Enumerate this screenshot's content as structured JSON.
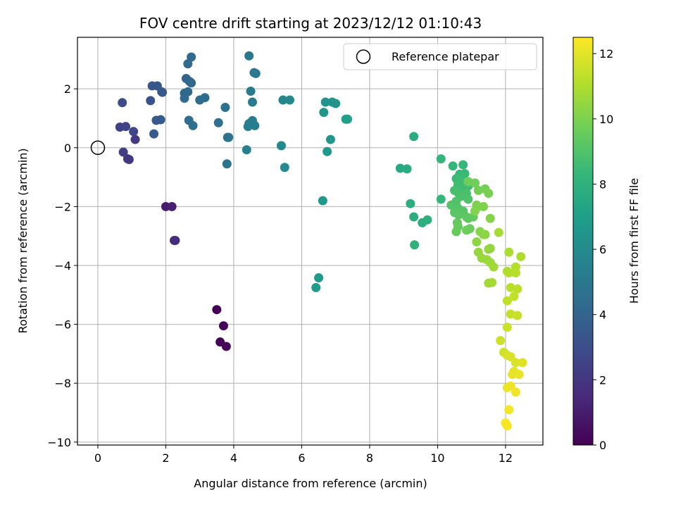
{
  "chart_data": {
    "type": "scatter",
    "title": "FOV centre drift starting at 2023/12/12 01:10:43",
    "xlabel": "Angular distance from reference (arcmin)",
    "ylabel": "Rotation from reference (arcmin)",
    "xlim": [
      -0.6,
      13.1
    ],
    "ylim": [
      -10.1,
      3.75
    ],
    "xticks": [
      0,
      2,
      4,
      6,
      8,
      10,
      12
    ],
    "yticks": [
      -10,
      -8,
      -6,
      -4,
      -2,
      0,
      2
    ],
    "grid": true,
    "legend": {
      "placement": "top-right",
      "entries": [
        {
          "label": "Reference platepar",
          "marker": "open-circle"
        }
      ]
    },
    "reference_point": {
      "x": 0,
      "y": 0
    },
    "colorbar": {
      "label": "Hours from first FF file",
      "colormap": "viridis",
      "range": [
        0,
        12.5
      ],
      "ticks": [
        0,
        2,
        4,
        6,
        8,
        10,
        12
      ]
    },
    "points": [
      {
        "x": 3.5,
        "y": -5.5,
        "t": 0.05
      },
      {
        "x": 3.7,
        "y": -6.05,
        "t": 0.1
      },
      {
        "x": 3.6,
        "y": -6.6,
        "t": 0.15
      },
      {
        "x": 3.78,
        "y": -6.75,
        "t": 0.2
      },
      {
        "x": 2.0,
        "y": -2.0,
        "t": 1.0
      },
      {
        "x": 2.18,
        "y": -2.0,
        "t": 1.1
      },
      {
        "x": 2.25,
        "y": -3.15,
        "t": 1.5
      },
      {
        "x": 2.28,
        "y": -3.15,
        "t": 1.6
      },
      {
        "x": 0.88,
        "y": -0.38,
        "t": 2.0
      },
      {
        "x": 0.92,
        "y": -0.4,
        "t": 2.1
      },
      {
        "x": 1.1,
        "y": 0.28,
        "t": 2.2
      },
      {
        "x": 0.75,
        "y": -0.15,
        "t": 2.3
      },
      {
        "x": 0.65,
        "y": 0.7,
        "t": 2.5
      },
      {
        "x": 0.82,
        "y": 0.72,
        "t": 2.6
      },
      {
        "x": 1.05,
        "y": 0.55,
        "t": 2.7
      },
      {
        "x": 0.72,
        "y": 1.53,
        "t": 2.9
      },
      {
        "x": 1.55,
        "y": 1.6,
        "t": 3.2
      },
      {
        "x": 1.6,
        "y": 2.1,
        "t": 3.3
      },
      {
        "x": 1.75,
        "y": 2.1,
        "t": 3.35
      },
      {
        "x": 1.88,
        "y": 1.9,
        "t": 3.4
      },
      {
        "x": 1.9,
        "y": 1.88,
        "t": 3.45
      },
      {
        "x": 1.72,
        "y": 0.93,
        "t": 3.5
      },
      {
        "x": 1.85,
        "y": 0.95,
        "t": 3.55
      },
      {
        "x": 1.65,
        "y": 0.47,
        "t": 3.6
      },
      {
        "x": 2.6,
        "y": 2.35,
        "t": 4.0
      },
      {
        "x": 2.7,
        "y": 2.25,
        "t": 4.05
      },
      {
        "x": 2.75,
        "y": 2.2,
        "t": 4.1
      },
      {
        "x": 2.55,
        "y": 1.85,
        "t": 4.15
      },
      {
        "x": 2.65,
        "y": 1.9,
        "t": 4.2
      },
      {
        "x": 2.55,
        "y": 1.68,
        "t": 4.25
      },
      {
        "x": 2.65,
        "y": 2.85,
        "t": 4.3
      },
      {
        "x": 2.75,
        "y": 3.08,
        "t": 4.35
      },
      {
        "x": 3.0,
        "y": 1.62,
        "t": 4.4
      },
      {
        "x": 3.15,
        "y": 1.7,
        "t": 4.45
      },
      {
        "x": 2.68,
        "y": 0.93,
        "t": 4.5
      },
      {
        "x": 2.8,
        "y": 0.75,
        "t": 4.55
      },
      {
        "x": 3.55,
        "y": 0.85,
        "t": 4.6
      },
      {
        "x": 3.75,
        "y": 1.37,
        "t": 4.65
      },
      {
        "x": 3.82,
        "y": 0.35,
        "t": 4.7
      },
      {
        "x": 3.85,
        "y": 0.35,
        "t": 4.75
      },
      {
        "x": 3.8,
        "y": -0.55,
        "t": 4.8
      },
      {
        "x": 4.45,
        "y": 3.12,
        "t": 5.0
      },
      {
        "x": 4.6,
        "y": 2.55,
        "t": 5.05
      },
      {
        "x": 4.65,
        "y": 2.52,
        "t": 5.1
      },
      {
        "x": 4.5,
        "y": 1.92,
        "t": 5.15
      },
      {
        "x": 4.55,
        "y": 1.55,
        "t": 5.2
      },
      {
        "x": 4.55,
        "y": 0.92,
        "t": 5.25
      },
      {
        "x": 4.45,
        "y": 0.82,
        "t": 5.3
      },
      {
        "x": 4.42,
        "y": 0.72,
        "t": 5.35
      },
      {
        "x": 4.62,
        "y": 0.75,
        "t": 5.4
      },
      {
        "x": 4.38,
        "y": -0.07,
        "t": 5.45
      },
      {
        "x": 5.45,
        "y": 1.62,
        "t": 5.8
      },
      {
        "x": 5.65,
        "y": 1.62,
        "t": 5.85
      },
      {
        "x": 5.4,
        "y": 0.07,
        "t": 5.9
      },
      {
        "x": 5.5,
        "y": -0.67,
        "t": 5.95
      },
      {
        "x": 6.7,
        "y": 1.55,
        "t": 6.4
      },
      {
        "x": 6.9,
        "y": 1.55,
        "t": 6.45
      },
      {
        "x": 7.0,
        "y": 1.5,
        "t": 6.5
      },
      {
        "x": 6.65,
        "y": 1.2,
        "t": 6.55
      },
      {
        "x": 6.85,
        "y": 0.28,
        "t": 6.6
      },
      {
        "x": 6.75,
        "y": -0.13,
        "t": 6.65
      },
      {
        "x": 6.62,
        "y": -1.8,
        "t": 6.7
      },
      {
        "x": 6.5,
        "y": -4.42,
        "t": 6.75
      },
      {
        "x": 6.42,
        "y": -4.75,
        "t": 6.8
      },
      {
        "x": 7.3,
        "y": 0.97,
        "t": 7.0
      },
      {
        "x": 7.35,
        "y": 0.97,
        "t": 7.05
      },
      {
        "x": 8.9,
        "y": -0.7,
        "t": 7.6
      },
      {
        "x": 9.1,
        "y": -0.72,
        "t": 7.65
      },
      {
        "x": 9.3,
        "y": 0.38,
        "t": 7.7
      },
      {
        "x": 9.2,
        "y": -1.9,
        "t": 7.75
      },
      {
        "x": 9.3,
        "y": -2.35,
        "t": 7.8
      },
      {
        "x": 9.55,
        "y": -2.55,
        "t": 7.85
      },
      {
        "x": 9.7,
        "y": -2.45,
        "t": 7.9
      },
      {
        "x": 9.32,
        "y": -3.3,
        "t": 7.95
      },
      {
        "x": 10.1,
        "y": -0.38,
        "t": 8.2
      },
      {
        "x": 10.1,
        "y": -1.75,
        "t": 8.25
      },
      {
        "x": 10.45,
        "y": -0.62,
        "t": 8.3
      },
      {
        "x": 10.75,
        "y": -0.58,
        "t": 8.35
      },
      {
        "x": 10.65,
        "y": -0.9,
        "t": 8.4
      },
      {
        "x": 10.8,
        "y": -0.88,
        "t": 8.45
      },
      {
        "x": 10.55,
        "y": -1.05,
        "t": 8.5
      },
      {
        "x": 10.7,
        "y": -1.15,
        "t": 8.55
      },
      {
        "x": 10.6,
        "y": -1.25,
        "t": 8.6
      },
      {
        "x": 10.75,
        "y": -1.35,
        "t": 8.65
      },
      {
        "x": 10.9,
        "y": -1.3,
        "t": 8.7
      },
      {
        "x": 10.5,
        "y": -1.45,
        "t": 8.75
      },
      {
        "x": 10.62,
        "y": -1.55,
        "t": 8.8
      },
      {
        "x": 10.85,
        "y": -1.55,
        "t": 8.85
      },
      {
        "x": 10.7,
        "y": -1.65,
        "t": 8.9
      },
      {
        "x": 10.9,
        "y": -1.75,
        "t": 8.95
      },
      {
        "x": 10.55,
        "y": -1.82,
        "t": 9.0
      },
      {
        "x": 10.4,
        "y": -1.95,
        "t": 9.05
      },
      {
        "x": 10.6,
        "y": -2.05,
        "t": 9.1
      },
      {
        "x": 10.75,
        "y": -2.15,
        "t": 9.15
      },
      {
        "x": 10.5,
        "y": -2.2,
        "t": 9.2
      },
      {
        "x": 10.62,
        "y": -2.28,
        "t": 9.25
      },
      {
        "x": 10.85,
        "y": -2.35,
        "t": 9.3
      },
      {
        "x": 10.9,
        "y": -2.4,
        "t": 9.35
      },
      {
        "x": 11.05,
        "y": -2.35,
        "t": 9.4
      },
      {
        "x": 10.58,
        "y": -2.55,
        "t": 9.45
      },
      {
        "x": 10.6,
        "y": -2.68,
        "t": 9.5
      },
      {
        "x": 10.55,
        "y": -2.85,
        "t": 9.55
      },
      {
        "x": 10.95,
        "y": -2.75,
        "t": 9.6
      },
      {
        "x": 10.85,
        "y": -2.8,
        "t": 9.65
      },
      {
        "x": 10.9,
        "y": -1.15,
        "t": 9.7
      },
      {
        "x": 11.1,
        "y": -1.2,
        "t": 9.75
      },
      {
        "x": 11.2,
        "y": -1.45,
        "t": 9.8
      },
      {
        "x": 11.4,
        "y": -1.4,
        "t": 9.85
      },
      {
        "x": 11.5,
        "y": -1.55,
        "t": 9.9
      },
      {
        "x": 11.15,
        "y": -1.95,
        "t": 9.95
      },
      {
        "x": 11.2,
        "y": -2.0,
        "t": 10.0
      },
      {
        "x": 11.35,
        "y": -2.0,
        "t": 10.05
      },
      {
        "x": 11.1,
        "y": -2.15,
        "t": 10.1
      },
      {
        "x": 11.55,
        "y": -2.4,
        "t": 10.15
      },
      {
        "x": 11.25,
        "y": -2.85,
        "t": 10.2
      },
      {
        "x": 11.35,
        "y": -2.95,
        "t": 10.25
      },
      {
        "x": 11.4,
        "y": -2.95,
        "t": 10.3
      },
      {
        "x": 11.15,
        "y": -3.2,
        "t": 10.35
      },
      {
        "x": 11.55,
        "y": -3.42,
        "t": 10.4
      },
      {
        "x": 11.5,
        "y": -3.45,
        "t": 10.45
      },
      {
        "x": 11.2,
        "y": -3.55,
        "t": 10.5
      },
      {
        "x": 11.3,
        "y": -3.75,
        "t": 10.55
      },
      {
        "x": 11.45,
        "y": -3.8,
        "t": 10.6
      },
      {
        "x": 11.55,
        "y": -3.9,
        "t": 10.65
      },
      {
        "x": 11.65,
        "y": -4.05,
        "t": 10.7
      },
      {
        "x": 11.5,
        "y": -4.6,
        "t": 10.75
      },
      {
        "x": 11.6,
        "y": -4.58,
        "t": 10.8
      },
      {
        "x": 11.8,
        "y": -2.88,
        "t": 10.85
      },
      {
        "x": 12.1,
        "y": -3.55,
        "t": 10.9
      },
      {
        "x": 12.45,
        "y": -3.7,
        "t": 10.95
      },
      {
        "x": 12.05,
        "y": -4.2,
        "t": 11.0
      },
      {
        "x": 12.1,
        "y": -4.25,
        "t": 11.05
      },
      {
        "x": 12.3,
        "y": -4.05,
        "t": 11.1
      },
      {
        "x": 12.3,
        "y": -4.25,
        "t": 11.15
      },
      {
        "x": 12.15,
        "y": -4.75,
        "t": 11.2
      },
      {
        "x": 12.35,
        "y": -4.8,
        "t": 11.25
      },
      {
        "x": 12.05,
        "y": -5.2,
        "t": 11.3
      },
      {
        "x": 12.25,
        "y": -5.05,
        "t": 11.35
      },
      {
        "x": 12.15,
        "y": -5.65,
        "t": 11.4
      },
      {
        "x": 12.35,
        "y": -5.7,
        "t": 11.45
      },
      {
        "x": 12.05,
        "y": -6.1,
        "t": 11.5
      },
      {
        "x": 11.85,
        "y": -6.55,
        "t": 11.55
      },
      {
        "x": 11.95,
        "y": -6.95,
        "t": 11.6
      },
      {
        "x": 12.05,
        "y": -7.05,
        "t": 11.7
      },
      {
        "x": 12.15,
        "y": -7.1,
        "t": 11.8
      },
      {
        "x": 12.3,
        "y": -7.3,
        "t": 11.85
      },
      {
        "x": 12.5,
        "y": -7.3,
        "t": 11.9
      },
      {
        "x": 12.25,
        "y": -7.6,
        "t": 12.0
      },
      {
        "x": 12.2,
        "y": -7.7,
        "t": 12.05
      },
      {
        "x": 12.4,
        "y": -7.7,
        "t": 12.1
      },
      {
        "x": 12.05,
        "y": -8.15,
        "t": 12.15
      },
      {
        "x": 12.15,
        "y": -8.1,
        "t": 12.2
      },
      {
        "x": 12.3,
        "y": -8.3,
        "t": 12.25
      },
      {
        "x": 12.1,
        "y": -8.9,
        "t": 12.3
      },
      {
        "x": 12.0,
        "y": -9.35,
        "t": 12.35
      },
      {
        "x": 12.05,
        "y": -9.45,
        "t": 12.4
      }
    ]
  }
}
